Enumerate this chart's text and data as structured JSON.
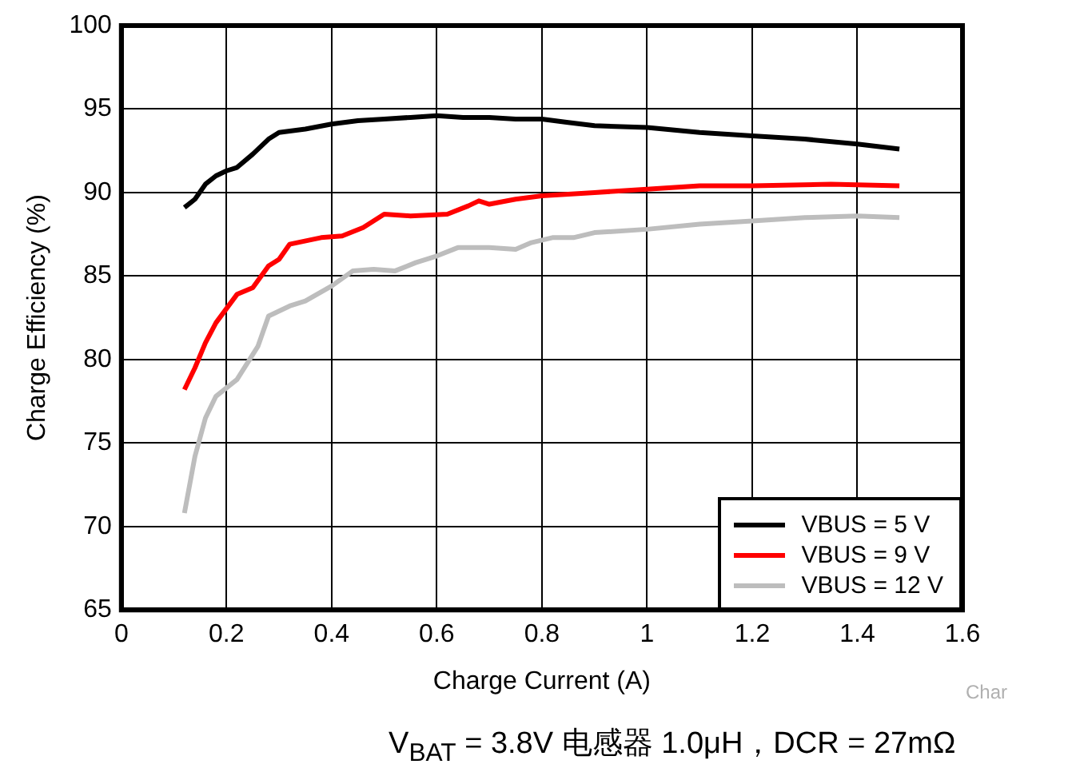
{
  "chart_data": {
    "type": "line",
    "xlabel": "Charge Current (A)",
    "ylabel": "Charge Efficiency (%)",
    "xlim": [
      0,
      1.6
    ],
    "xticks": [
      0,
      0.2,
      0.4,
      0.6,
      0.8,
      1,
      1.2,
      1.4,
      1.6
    ],
    "ylim": [
      65,
      100
    ],
    "yticks": [
      65,
      70,
      75,
      80,
      85,
      90,
      95,
      100
    ],
    "grid": true,
    "legend": "bottom right",
    "marker": "none",
    "line_style": "solid",
    "annotations": [
      "Char",
      "V$_{BAT}$ = 3.8V   电感器 1.0μH，DCR = 27mΩ"
    ],
    "series": [
      {
        "name": "VBUS = 5 V",
        "color": "#000000",
        "x": [
          0.12,
          0.14,
          0.16,
          0.18,
          0.2,
          0.22,
          0.25,
          0.28,
          0.3,
          0.35,
          0.4,
          0.45,
          0.5,
          0.55,
          0.6,
          0.65,
          0.7,
          0.75,
          0.8,
          0.85,
          0.9,
          1.0,
          1.1,
          1.2,
          1.3,
          1.4,
          1.48
        ],
        "values": [
          89.1,
          89.6,
          90.5,
          91.0,
          91.3,
          91.5,
          92.3,
          93.2,
          93.6,
          93.8,
          94.1,
          94.3,
          94.4,
          94.5,
          94.6,
          94.5,
          94.5,
          94.4,
          94.4,
          94.2,
          94.0,
          93.9,
          93.6,
          93.4,
          93.2,
          92.9,
          92.6
        ]
      },
      {
        "name": "VBUS = 9 V",
        "color": "#ff0000",
        "x": [
          0.12,
          0.14,
          0.16,
          0.18,
          0.22,
          0.25,
          0.28,
          0.3,
          0.32,
          0.38,
          0.42,
          0.46,
          0.5,
          0.55,
          0.62,
          0.66,
          0.68,
          0.7,
          0.75,
          0.8,
          0.9,
          1.0,
          1.1,
          1.2,
          1.35,
          1.48
        ],
        "values": [
          78.2,
          79.5,
          81.0,
          82.2,
          83.9,
          84.3,
          85.6,
          86.0,
          86.9,
          87.3,
          87.4,
          87.9,
          88.7,
          88.6,
          88.7,
          89.2,
          89.5,
          89.3,
          89.6,
          89.8,
          90.0,
          90.2,
          90.4,
          90.4,
          90.5,
          90.4
        ]
      },
      {
        "name": "VBUS = 12 V",
        "color": "#bdbdbd",
        "x": [
          0.12,
          0.14,
          0.16,
          0.18,
          0.22,
          0.26,
          0.28,
          0.32,
          0.35,
          0.4,
          0.44,
          0.48,
          0.52,
          0.56,
          0.6,
          0.64,
          0.7,
          0.75,
          0.78,
          0.82,
          0.86,
          0.9,
          1.0,
          1.1,
          1.2,
          1.3,
          1.4,
          1.48
        ],
        "values": [
          70.8,
          74.2,
          76.5,
          77.8,
          78.8,
          80.8,
          82.6,
          83.2,
          83.5,
          84.4,
          85.3,
          85.4,
          85.3,
          85.8,
          86.2,
          86.7,
          86.7,
          86.6,
          87.0,
          87.3,
          87.3,
          87.6,
          87.8,
          88.1,
          88.3,
          88.5,
          88.6,
          88.5
        ]
      }
    ]
  }
}
